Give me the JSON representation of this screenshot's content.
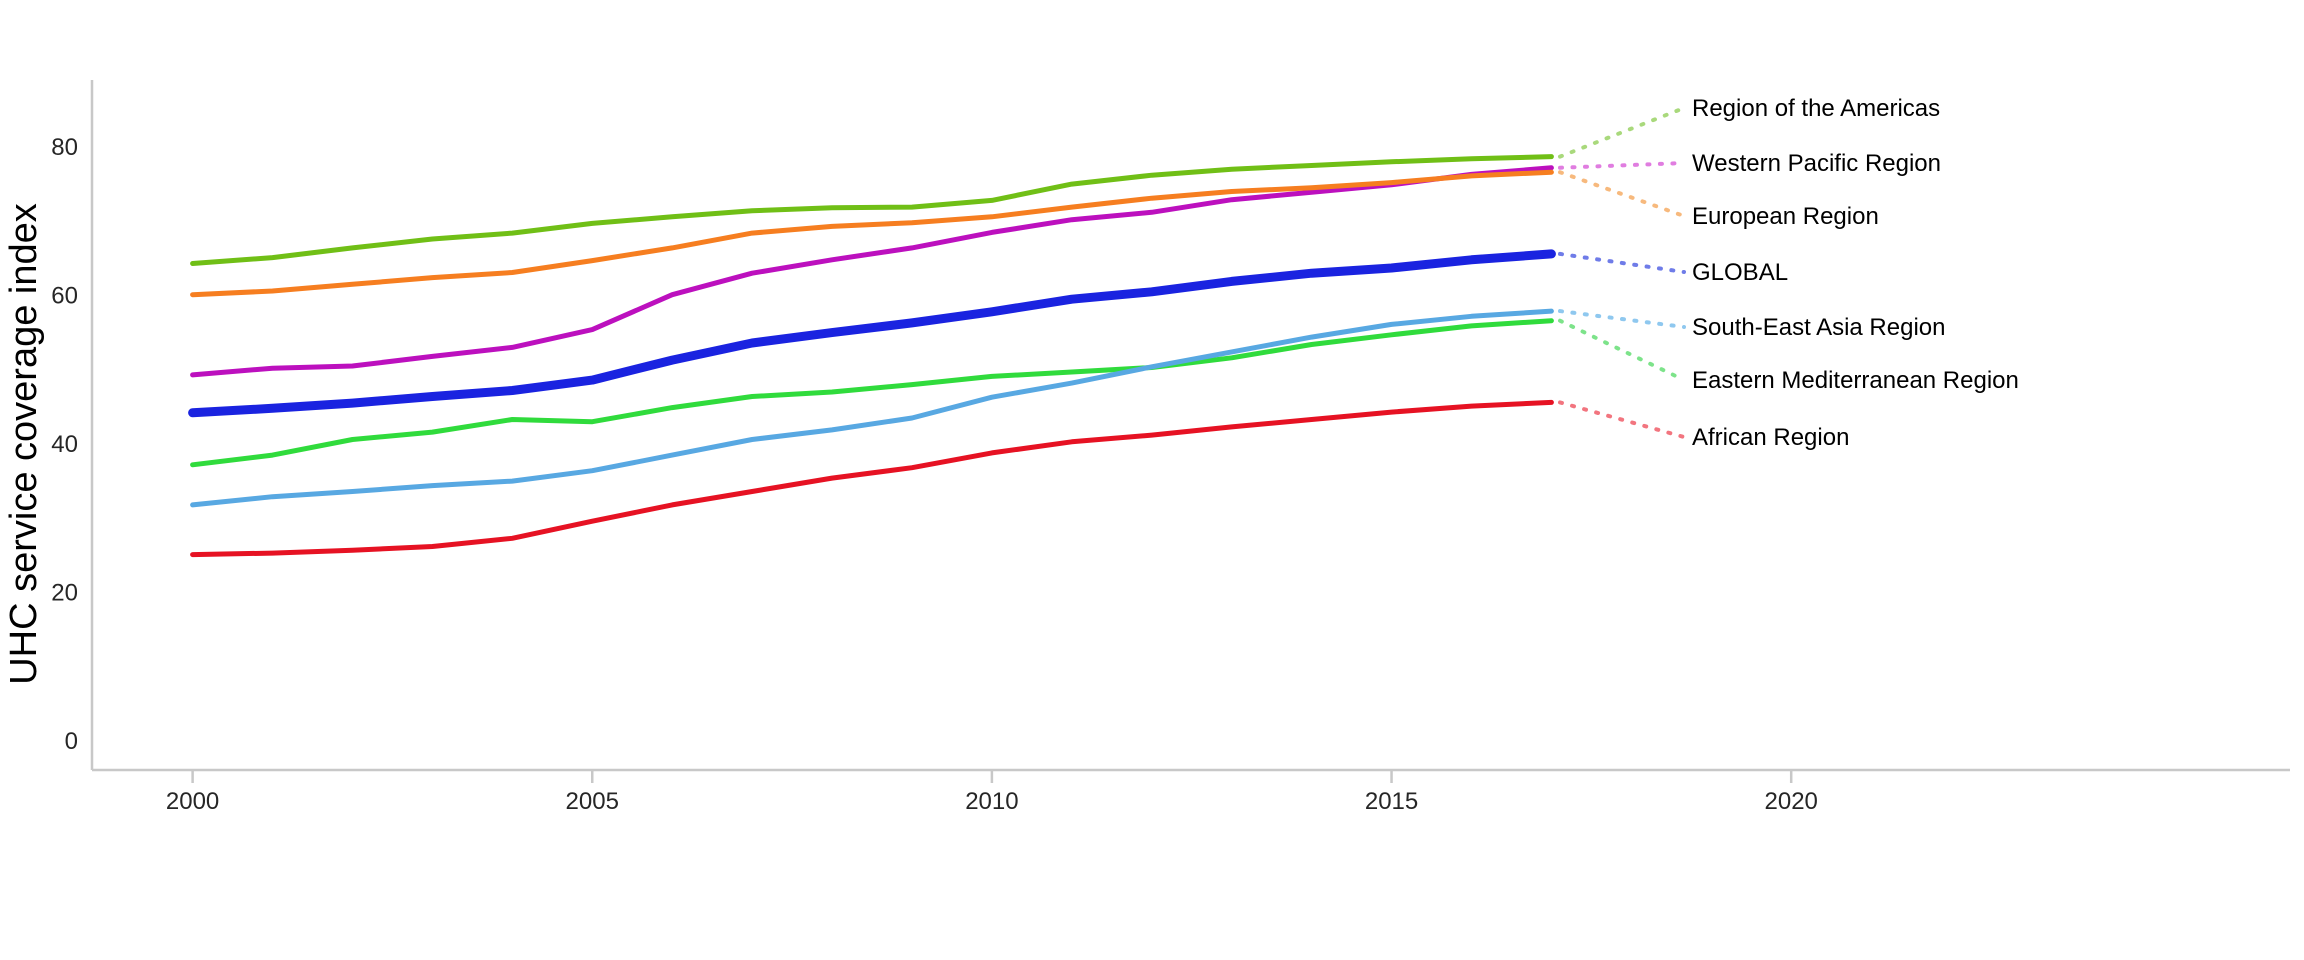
{
  "chart_data": {
    "type": "line",
    "title": "",
    "xlabel": "",
    "ylabel": "UHC service coverage index",
    "x": [
      2000,
      2001,
      2002,
      2003,
      2004,
      2005,
      2006,
      2007,
      2008,
      2009,
      2010,
      2011,
      2012,
      2013,
      2014,
      2015,
      2016,
      2017
    ],
    "xticks": [
      2000,
      2005,
      2010,
      2015,
      2020
    ],
    "yticks": [
      0,
      20,
      40,
      60,
      80
    ],
    "xlim": [
      1998.7,
      2026.4
    ],
    "ylim": [
      0,
      88
    ],
    "grid": false,
    "legend_position": "right edge labels with dotted leader lines",
    "series": [
      {
        "name": "Region of the Americas",
        "color": "#70bf16",
        "leader_color": "#a9d97c",
        "line_width": 5,
        "values": [
          64.3,
          65.1,
          66.4,
          67.6,
          68.4,
          69.7,
          70.6,
          71.4,
          71.8,
          71.9,
          72.8,
          75.0,
          76.2,
          77.0,
          77.5,
          78.0,
          78.4,
          78.7
        ]
      },
      {
        "name": "Western Pacific Region",
        "color": "#bc10be",
        "leader_color": "#e07de0",
        "line_width": 5,
        "values": [
          49.3,
          50.2,
          50.5,
          51.8,
          53.0,
          55.4,
          60.1,
          63.0,
          64.8,
          66.4,
          68.5,
          70.2,
          71.2,
          72.9,
          73.9,
          74.9,
          76.3,
          77.2
        ]
      },
      {
        "name": "European Region",
        "color": "#f67e20",
        "leader_color": "#f7b97d",
        "line_width": 5,
        "values": [
          60.1,
          60.6,
          61.5,
          62.4,
          63.1,
          64.7,
          66.4,
          68.4,
          69.3,
          69.8,
          70.6,
          71.9,
          73.1,
          74.0,
          74.5,
          75.2,
          76.1,
          76.6
        ]
      },
      {
        "name": "GLOBAL",
        "color": "#1a23e0",
        "leader_color": "#6f7ce8",
        "line_width": 9,
        "values": [
          44.2,
          44.8,
          45.5,
          46.4,
          47.2,
          48.6,
          51.3,
          53.6,
          55.0,
          56.3,
          57.8,
          59.5,
          60.5,
          61.9,
          63.0,
          63.7,
          64.8,
          65.6
        ]
      },
      {
        "name": "South-East Asia Region",
        "color": "#58a8e2",
        "leader_color": "#8fc8ef",
        "line_width": 5,
        "values": [
          31.8,
          32.9,
          33.6,
          34.4,
          35.0,
          36.4,
          38.5,
          40.6,
          41.9,
          43.5,
          46.3,
          48.2,
          50.4,
          52.4,
          54.4,
          56.1,
          57.2,
          57.9
        ]
      },
      {
        "name": "Eastern Mediterranean Region",
        "color": "#30db3c",
        "leader_color": "#7de38a",
        "line_width": 5,
        "values": [
          37.2,
          38.5,
          40.6,
          41.6,
          43.3,
          43.0,
          44.9,
          46.4,
          47.0,
          48.0,
          49.1,
          49.7,
          50.3,
          51.6,
          53.4,
          54.7,
          55.9,
          56.6
        ]
      },
      {
        "name": "African Region",
        "color": "#e61223",
        "leader_color": "#f2757f",
        "line_width": 5,
        "values": [
          25.1,
          25.3,
          25.7,
          26.2,
          27.3,
          29.6,
          31.8,
          33.6,
          35.4,
          36.8,
          38.8,
          40.3,
          41.2,
          42.3,
          43.3,
          44.3,
          45.1,
          45.6
        ]
      }
    ]
  },
  "colors": {
    "background": "#ffffff",
    "axis_line": "#c8c8c8",
    "tick_mark": "#c8c8c8",
    "tick_label": "#262626",
    "legend_text": "#000000"
  }
}
